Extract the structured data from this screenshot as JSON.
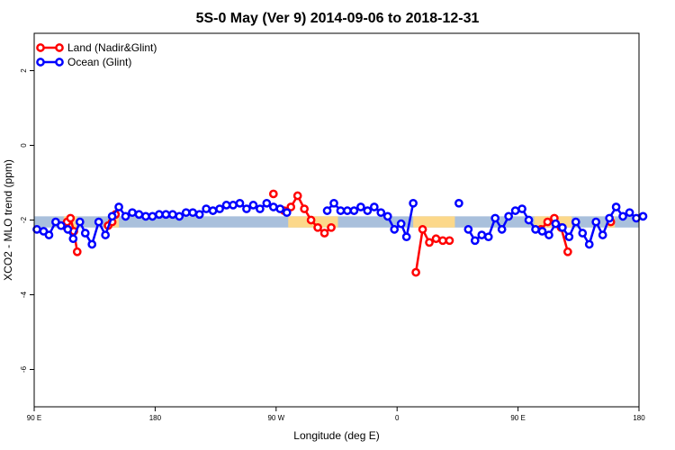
{
  "chart_data": {
    "type": "line",
    "title": "5S-0 May (Ver 9)   2014-09-06 to 2018-12-31",
    "xlabel": "Longitude (deg E)",
    "ylabel": "XCO2 - MLO trend (ppm)",
    "x_ticks": [
      {
        "value": 90,
        "label": "90 E"
      },
      {
        "value": 180,
        "label": "180"
      },
      {
        "value": 270,
        "label": "90 W"
      },
      {
        "value": 360,
        "label": "0"
      },
      {
        "value": 450,
        "label": "90 E"
      },
      {
        "value": 540,
        "label": "180"
      }
    ],
    "y_ticks": [
      {
        "value": 2,
        "label": "2"
      },
      {
        "value": 0,
        "label": "0"
      },
      {
        "value": -2,
        "label": "-2"
      },
      {
        "value": -4,
        "label": "-4"
      },
      {
        "value": -6,
        "label": "-6"
      }
    ],
    "xlim": [
      90,
      540
    ],
    "ylim": [
      -7,
      3
    ],
    "band": {
      "ymin": -2.2,
      "ymax": -1.9,
      "color": "#a9c0dc",
      "highlight_color": "#fcd88a",
      "highlight_ranges": [
        [
          112,
          122
        ],
        [
          146,
          153
        ],
        [
          279,
          316
        ],
        [
          372,
          403
        ],
        [
          462,
          490
        ],
        [
          516,
          522
        ]
      ]
    },
    "series": [
      {
        "name": "Land (Nadir&Glint)",
        "color": "#ff0000",
        "segments": [
          [
            [
              112,
              -2.15
            ],
            [
              114.5,
              -2.05
            ],
            [
              117,
              -1.95
            ],
            [
              119.5,
              -2.3
            ],
            [
              122,
              -2.85
            ]
          ],
          [
            [
              145,
              -2.15
            ],
            [
              148,
              -2.05
            ],
            [
              150.5,
              -1.85
            ]
          ],
          [
            [
              268,
              -1.3
            ]
          ],
          [
            [
              276,
              -1.75
            ],
            [
              281,
              -1.65
            ],
            [
              286,
              -1.35
            ],
            [
              291,
              -1.7
            ],
            [
              296,
              -2.0
            ],
            [
              301,
              -2.2
            ],
            [
              306,
              -2.35
            ],
            [
              311,
              -2.2
            ]
          ],
          [
            [
              374,
              -3.4
            ],
            [
              379,
              -2.25
            ],
            [
              384,
              -2.6
            ],
            [
              389,
              -2.5
            ],
            [
              394,
              -2.55
            ],
            [
              399,
              -2.55
            ]
          ],
          [
            [
              467,
              -2.25
            ],
            [
              472,
              -2.05
            ],
            [
              477,
              -1.95
            ],
            [
              482,
              -2.2
            ],
            [
              487,
              -2.85
            ]
          ],
          [
            [
              519,
              -2.05
            ]
          ]
        ]
      },
      {
        "name": "Ocean (Glint)",
        "color": "#0000ff",
        "segments": [
          [
            [
              92,
              -2.25
            ],
            [
              97,
              -2.3
            ],
            [
              101,
              -2.4
            ],
            [
              106,
              -2.05
            ],
            [
              110,
              -2.15
            ],
            [
              115,
              -2.25
            ],
            [
              119,
              -2.5
            ],
            [
              124,
              -2.05
            ],
            [
              128,
              -2.35
            ],
            [
              133,
              -2.65
            ],
            [
              138,
              -2.05
            ],
            [
              143,
              -2.4
            ],
            [
              148,
              -1.9
            ],
            [
              153,
              -1.65
            ],
            [
              158,
              -1.9
            ],
            [
              163,
              -1.8
            ],
            [
              168,
              -1.85
            ],
            [
              173,
              -1.9
            ],
            [
              178,
              -1.9
            ],
            [
              183,
              -1.85
            ],
            [
              188,
              -1.85
            ],
            [
              193,
              -1.85
            ],
            [
              198,
              -1.9
            ],
            [
              203,
              -1.8
            ],
            [
              208,
              -1.8
            ],
            [
              213,
              -1.85
            ],
            [
              218,
              -1.7
            ],
            [
              223,
              -1.75
            ],
            [
              228,
              -1.7
            ],
            [
              233,
              -1.6
            ],
            [
              238,
              -1.6
            ],
            [
              243,
              -1.55
            ],
            [
              248,
              -1.7
            ],
            [
              253,
              -1.6
            ],
            [
              258,
              -1.7
            ],
            [
              263,
              -1.55
            ],
            [
              268,
              -1.65
            ],
            [
              273,
              -1.7
            ],
            [
              278,
              -1.8
            ]
          ],
          [
            [
              308,
              -1.75
            ],
            [
              313,
              -1.55
            ],
            [
              318,
              -1.75
            ],
            [
              323,
              -1.75
            ],
            [
              328,
              -1.75
            ],
            [
              333,
              -1.65
            ],
            [
              338,
              -1.75
            ],
            [
              343,
              -1.65
            ],
            [
              348,
              -1.8
            ],
            [
              353,
              -1.9
            ],
            [
              358,
              -2.25
            ],
            [
              363,
              -2.1
            ],
            [
              367,
              -2.45
            ],
            [
              372,
              -1.55
            ]
          ],
          [
            [
              406,
              -1.55
            ]
          ],
          [
            [
              413,
              -2.25
            ],
            [
              418,
              -2.55
            ],
            [
              423,
              -2.4
            ],
            [
              428,
              -2.45
            ],
            [
              433,
              -1.95
            ],
            [
              438,
              -2.25
            ],
            [
              443,
              -1.9
            ],
            [
              448,
              -1.75
            ],
            [
              453,
              -1.7
            ],
            [
              458,
              -2.0
            ],
            [
              463,
              -2.25
            ],
            [
              468,
              -2.3
            ],
            [
              473,
              -2.4
            ],
            [
              478,
              -2.1
            ],
            [
              483,
              -2.2
            ],
            [
              488,
              -2.45
            ],
            [
              493,
              -2.05
            ],
            [
              498,
              -2.35
            ],
            [
              503,
              -2.65
            ],
            [
              508,
              -2.05
            ],
            [
              513,
              -2.4
            ],
            [
              518,
              -1.95
            ],
            [
              523,
              -1.65
            ],
            [
              528,
              -1.9
            ],
            [
              533,
              -1.8
            ],
            [
              538,
              -1.95
            ],
            [
              543,
              -1.9
            ]
          ]
        ]
      }
    ],
    "legend": {
      "placement": "top-left",
      "entries": [
        {
          "label": "Land (Nadir&Glint)",
          "color": "#ff0000"
        },
        {
          "label": "Ocean (Glint)",
          "color": "#0000ff"
        }
      ]
    },
    "grid": false
  }
}
